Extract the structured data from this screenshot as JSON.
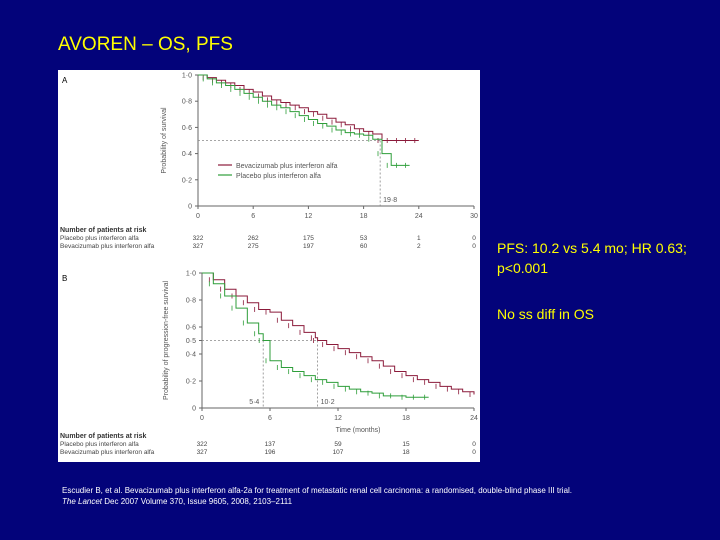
{
  "slide": {
    "title": "AVOREN – OS, PFS",
    "note_pfs": "PFS: 10.2 vs 5.4 mo; HR 0.63; p<0.001",
    "note_os": "No ss diff in OS",
    "citation_line1": "Escudier B, et al. Bevacizumab plus interferon alfa-2a for treatment of metastatic renal cell carcinoma: a randomised, double-blind phase III trial.",
    "citation_journal": "The Lancet",
    "citation_rest": " Dec 2007 Volume 370, Issue 9605, 2008, 2103–2111"
  },
  "colors": {
    "background": "#03037a",
    "title": "#ffff00",
    "bevacizumab": "#8b1a3a",
    "placebo": "#2e9e3a",
    "axis": "#666666"
  },
  "chart_data": [
    {
      "type": "line",
      "panel": "A",
      "ylabel": "Probability of survival",
      "xticks": [
        0,
        6,
        12,
        18,
        24,
        30
      ],
      "yticks": [
        "0",
        "0·2",
        "0·4",
        "0·6",
        "0·8",
        "1·0"
      ],
      "xlim": [
        0,
        30
      ],
      "ylim": [
        0,
        1
      ],
      "legend": [
        "Bevacizumab plus interferon alfa",
        "Placebo plus interferon alfa"
      ],
      "median_annotation": "19·8",
      "reference": {
        "y": 0.5,
        "x": 19.8
      },
      "series": [
        {
          "name": "Bevacizumab plus interferon alfa",
          "x": [
            0,
            1,
            2,
            3,
            4,
            5,
            6,
            7,
            8,
            9,
            10,
            11,
            12,
            13,
            14,
            15,
            16,
            17,
            18,
            19,
            20,
            21,
            22,
            23,
            24
          ],
          "y": [
            1,
            0.98,
            0.96,
            0.94,
            0.92,
            0.89,
            0.87,
            0.84,
            0.81,
            0.79,
            0.77,
            0.75,
            0.72,
            0.7,
            0.67,
            0.64,
            0.62,
            0.59,
            0.57,
            0.55,
            0.5,
            0.5,
            0.5,
            0.5,
            0.5
          ]
        },
        {
          "name": "Placebo plus interferon alfa",
          "x": [
            0,
            1,
            2,
            3,
            4,
            5,
            6,
            7,
            8,
            9,
            10,
            11,
            12,
            13,
            14,
            15,
            16,
            17,
            18,
            19,
            20,
            21,
            22,
            23
          ],
          "y": [
            1,
            0.97,
            0.94,
            0.92,
            0.89,
            0.86,
            0.83,
            0.8,
            0.77,
            0.75,
            0.72,
            0.69,
            0.66,
            0.63,
            0.61,
            0.58,
            0.56,
            0.55,
            0.54,
            0.51,
            0.4,
            0.31,
            0.31,
            0.31
          ]
        }
      ],
      "at_risk": {
        "title": "Number of patients at risk",
        "rows": [
          {
            "label": "Placebo plus interferon alfa",
            "values": [
              "322",
              "262",
              "175",
              "53",
              "1",
              "0"
            ]
          },
          {
            "label": "Bevacizumab plus interferon alfa",
            "values": [
              "327",
              "275",
              "197",
              "60",
              "2",
              "0"
            ]
          }
        ]
      }
    },
    {
      "type": "line",
      "panel": "B",
      "ylabel": "Probability of progression-free survival",
      "xlabel": "Time (months)",
      "xticks": [
        0,
        6,
        12,
        18,
        24
      ],
      "yticks": [
        "0",
        "0·2",
        "0·4",
        "0·5",
        "0·6",
        "0·8",
        "1·0"
      ],
      "xlim": [
        0,
        24
      ],
      "ylim": [
        0,
        1
      ],
      "median_annotations": [
        "5·4",
        "10·2"
      ],
      "reference": {
        "y": 0.5,
        "x_placebo": 5.4,
        "x_bevacizumab": 10.2
      },
      "series": [
        {
          "name": "Bevacizumab plus interferon alfa",
          "x": [
            0,
            1,
            2,
            3,
            4,
            5,
            6,
            7,
            8,
            9,
            10,
            10.2,
            11,
            12,
            13,
            14,
            15,
            16,
            17,
            18,
            19,
            20,
            21,
            22,
            23,
            24
          ],
          "y": [
            1,
            0.95,
            0.88,
            0.83,
            0.78,
            0.73,
            0.71,
            0.65,
            0.61,
            0.56,
            0.52,
            0.5,
            0.47,
            0.44,
            0.41,
            0.38,
            0.35,
            0.31,
            0.27,
            0.24,
            0.21,
            0.19,
            0.16,
            0.14,
            0.12,
            0.1
          ]
        },
        {
          "name": "Placebo plus interferon alfa",
          "x": [
            0,
            1,
            2,
            3,
            4,
            5,
            5.4,
            6,
            7,
            8,
            9,
            10,
            11,
            12,
            13,
            14,
            15,
            16,
            17,
            18,
            19,
            20
          ],
          "y": [
            1,
            0.92,
            0.83,
            0.74,
            0.63,
            0.55,
            0.5,
            0.35,
            0.3,
            0.27,
            0.24,
            0.21,
            0.19,
            0.16,
            0.14,
            0.12,
            0.11,
            0.09,
            0.09,
            0.08,
            0.08,
            0.08
          ]
        }
      ],
      "at_risk": {
        "title": "Number of patients at risk",
        "rows": [
          {
            "label": "Placebo plus interferon alfa",
            "values": [
              "322",
              "137",
              "59",
              "15",
              "0"
            ]
          },
          {
            "label": "Bevacizumab plus interferon alfa",
            "values": [
              "327",
              "196",
              "107",
              "18",
              "0"
            ]
          }
        ]
      }
    }
  ]
}
